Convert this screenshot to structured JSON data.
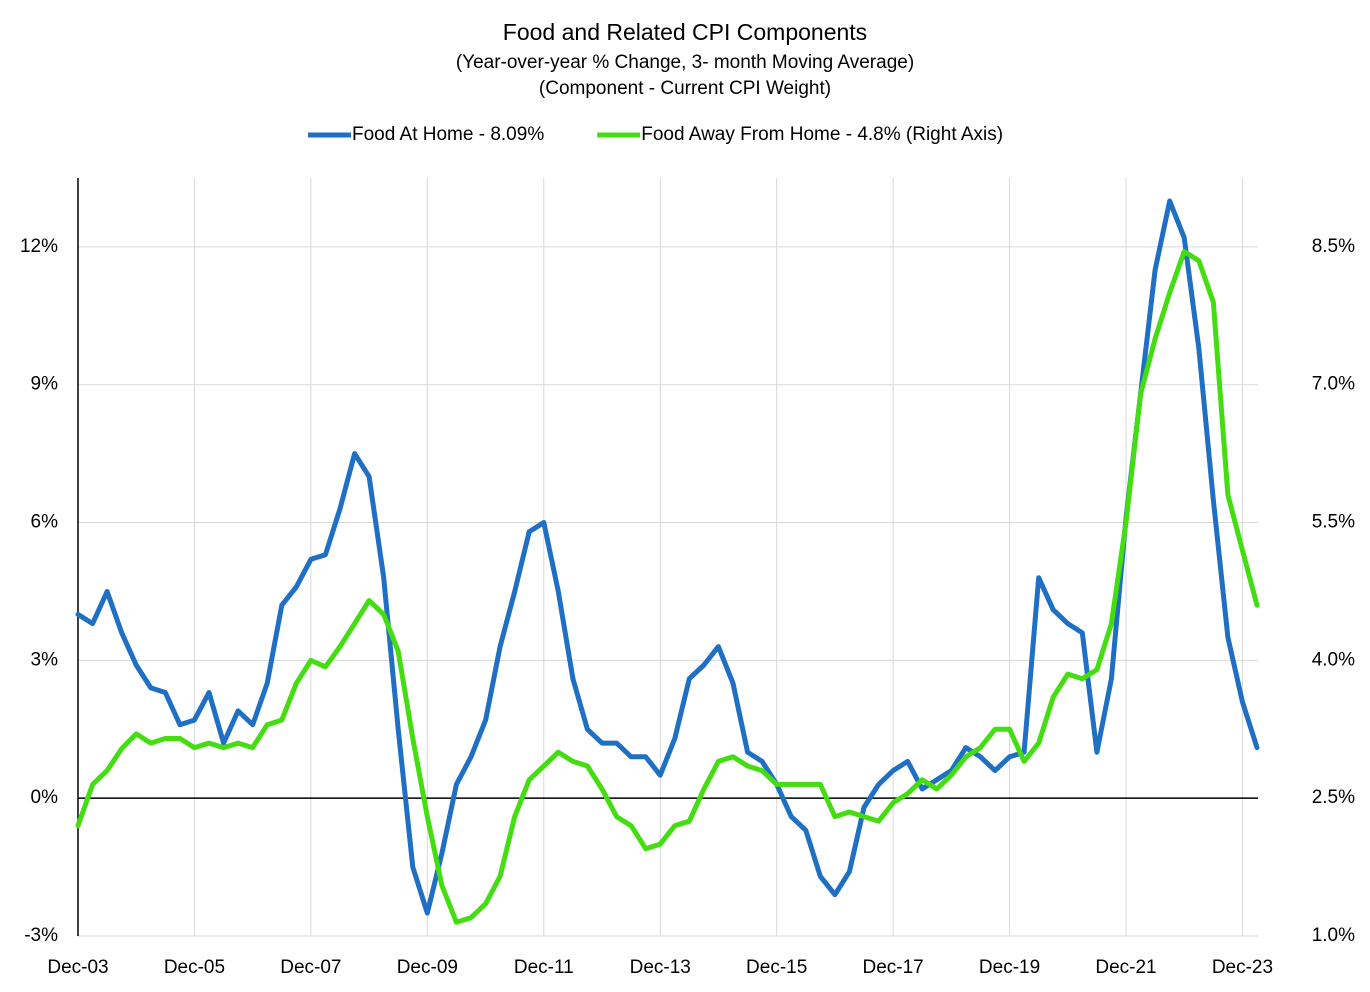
{
  "chart_data": {
    "type": "line",
    "title": "Food  and Related CPI Components",
    "subtitle": "(Year-over-year % Change, 3- month Moving Average)",
    "subtitle2": "(Component - Current CPI Weight)",
    "categories": [
      "Dec-03",
      null,
      null,
      null,
      null,
      null,
      null,
      null,
      "Dec-05",
      null,
      null,
      null,
      null,
      null,
      null,
      null,
      "Dec-07",
      null,
      null,
      null,
      null,
      null,
      null,
      null,
      "Dec-09",
      null,
      null,
      null,
      null,
      null,
      null,
      null,
      "Dec-11",
      null,
      null,
      null,
      null,
      null,
      null,
      null,
      "Dec-13",
      null,
      null,
      null,
      null,
      null,
      null,
      null,
      "Dec-15",
      null,
      null,
      null,
      null,
      null,
      null,
      null,
      "Dec-17",
      null,
      null,
      null,
      null,
      null,
      null,
      null,
      "Dec-19",
      null,
      null,
      null,
      null,
      null,
      null,
      null,
      "Dec-21",
      null,
      null,
      null,
      null,
      null,
      null,
      null,
      "Dec-23",
      null
    ],
    "series": [
      {
        "name": "Food At Home - 8.09%",
        "color": "#1f6fc5",
        "values": [
          4.0,
          3.8,
          4.5,
          3.6,
          2.9,
          2.4,
          2.3,
          1.6,
          1.7,
          2.3,
          1.2,
          1.9,
          1.6,
          2.5,
          4.2,
          4.6,
          5.2,
          5.3,
          6.3,
          7.5,
          7.0,
          4.8,
          1.5,
          -1.5,
          -2.5,
          -1.2,
          0.3,
          0.9,
          1.7,
          3.3,
          4.5,
          5.8,
          6.0,
          4.5,
          2.6,
          1.5,
          1.2,
          1.2,
          0.9,
          0.9,
          0.5,
          1.3,
          2.6,
          2.9,
          3.3,
          2.5,
          1.0,
          0.8,
          0.3,
          -0.4,
          -0.7,
          -1.7,
          -2.1,
          -1.6,
          -0.2,
          0.3,
          0.6,
          0.8,
          0.2,
          0.4,
          0.6,
          1.1,
          0.9,
          0.6,
          0.9,
          1.0,
          4.8,
          4.1,
          3.8,
          3.6,
          1.0,
          2.6,
          6.1,
          8.8,
          11.5,
          13.0,
          12.2,
          9.8,
          6.5,
          3.5,
          2.1,
          1.1
        ]
      },
      {
        "name": "Food Away From Home - 4.8% (Right Axis)",
        "color": "#44dd11",
        "axis": "y2",
        "values": [
          2.2,
          2.65,
          2.8,
          3.04,
          3.2,
          3.1,
          3.15,
          3.15,
          3.05,
          3.1,
          3.05,
          3.1,
          3.05,
          3.3,
          3.35,
          3.75,
          4.0,
          3.93,
          4.15,
          4.4,
          4.65,
          4.5,
          4.1,
          3.15,
          2.3,
          1.55,
          1.15,
          1.2,
          1.35,
          1.65,
          2.3,
          2.7,
          2.85,
          3.0,
          2.9,
          2.85,
          2.6,
          2.3,
          2.2,
          1.95,
          2.0,
          2.2,
          2.25,
          2.6,
          2.9,
          2.95,
          2.85,
          2.8,
          2.65,
          2.65,
          2.65,
          2.65,
          2.3,
          2.35,
          2.3,
          2.25,
          2.45,
          2.55,
          2.7,
          2.6,
          2.75,
          2.95,
          3.05,
          3.25,
          3.25,
          2.9,
          3.1,
          3.6,
          3.85,
          3.8,
          3.9,
          4.4,
          5.5,
          6.9,
          7.5,
          8.0,
          8.45,
          8.35,
          7.9,
          5.8,
          5.2,
          4.6
        ]
      }
    ],
    "ylim": [
      -3,
      13.5
    ],
    "yticks": [
      {
        "value": -3,
        "label": "-3%"
      },
      {
        "value": 0,
        "label": "0%"
      },
      {
        "value": 3,
        "label": "3%"
      },
      {
        "value": 6,
        "label": "6%"
      },
      {
        "value": 9,
        "label": "9%"
      },
      {
        "value": 12,
        "label": "12%"
      }
    ],
    "y2lim": [
      1,
      9.25
    ],
    "y2ticks": [
      {
        "value": 1,
        "label": "1.0%"
      },
      {
        "value": 2.5,
        "label": "2.5%"
      },
      {
        "value": 4,
        "label": "4.0%"
      },
      {
        "value": 5.5,
        "label": "5.5%"
      },
      {
        "value": 7,
        "label": "7.0%"
      },
      {
        "value": 8.5,
        "label": "8.5%"
      }
    ],
    "grid": true,
    "legend": "top"
  }
}
